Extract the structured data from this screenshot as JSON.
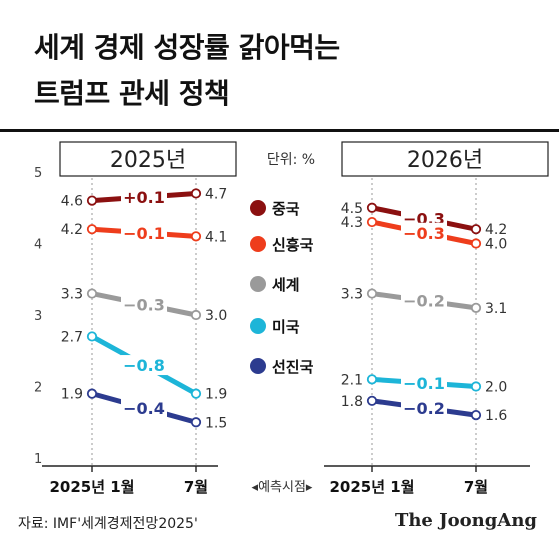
{
  "title_line1": "세계 경제 성장률 갉아먹는",
  "title_line2": "트럼프 관세 정책",
  "source": "자료: IMF'세계경제전망2025'",
  "brand": "The JoongAng",
  "colors": {
    "china": "#8b1010",
    "korea": "#ee3d1c",
    "world": "#9a9a9a",
    "usa": "#1db5d8",
    "advanced": "#2c3b8f"
  },
  "chart_data": [
    {
      "type": "line",
      "panel_label": "2025년",
      "x": [
        "2025년 1월",
        "7월"
      ],
      "ylim": [
        1,
        5
      ],
      "y_ticks": [
        1,
        2,
        3,
        4,
        5
      ],
      "series": [
        {
          "name": "중국",
          "color_key": "china",
          "values": [
            4.6,
            4.7
          ],
          "change": "+0.1",
          "labels": [
            "4.6",
            "4.7"
          ]
        },
        {
          "name": "신흥국",
          "color_key": "korea",
          "values": [
            4.2,
            4.1
          ],
          "change": "−0.1",
          "labels": [
            "4.2",
            "4.1"
          ]
        },
        {
          "name": "세계",
          "color_key": "world",
          "values": [
            3.3,
            3.0
          ],
          "change": "−0.3",
          "labels": [
            "3.3",
            "3.0"
          ]
        },
        {
          "name": "미국",
          "color_key": "usa",
          "values": [
            2.7,
            1.9
          ],
          "change": "−0.8",
          "labels": [
            "2.7",
            "1.9"
          ]
        },
        {
          "name": "선진국",
          "color_key": "advanced",
          "values": [
            1.9,
            1.5
          ],
          "change": "−0.4",
          "labels": [
            "1.9",
            "1.5"
          ]
        }
      ]
    },
    {
      "type": "line",
      "panel_label": "2026년",
      "x": [
        "2025년 1월",
        "7월"
      ],
      "ylim": [
        1,
        5
      ],
      "series": [
        {
          "name": "중국",
          "color_key": "china",
          "values": [
            4.5,
            4.2
          ],
          "change": "−0.3",
          "labels": [
            "4.5",
            "4.2"
          ]
        },
        {
          "name": "신흥국",
          "color_key": "korea",
          "values": [
            4.3,
            4.0
          ],
          "change": "−0.3",
          "labels": [
            "4.3",
            "4.0"
          ]
        },
        {
          "name": "세계",
          "color_key": "world",
          "values": [
            3.3,
            3.1
          ],
          "change": "−0.2",
          "labels": [
            "3.3",
            "3.1"
          ]
        },
        {
          "name": "미국",
          "color_key": "usa",
          "values": [
            2.1,
            2.0
          ],
          "change": "−0.1",
          "labels": [
            "2.1",
            "2.0"
          ]
        },
        {
          "name": "선진국",
          "color_key": "advanced",
          "values": [
            1.8,
            1.6
          ],
          "change": "−0.2",
          "labels": [
            "1.8",
            "1.6"
          ]
        }
      ]
    }
  ],
  "legend": {
    "unit": "단위: %",
    "items": [
      "중국",
      "신흥국",
      "세계",
      "미국",
      "선진국"
    ],
    "center_label": "◂예측시점▸"
  }
}
